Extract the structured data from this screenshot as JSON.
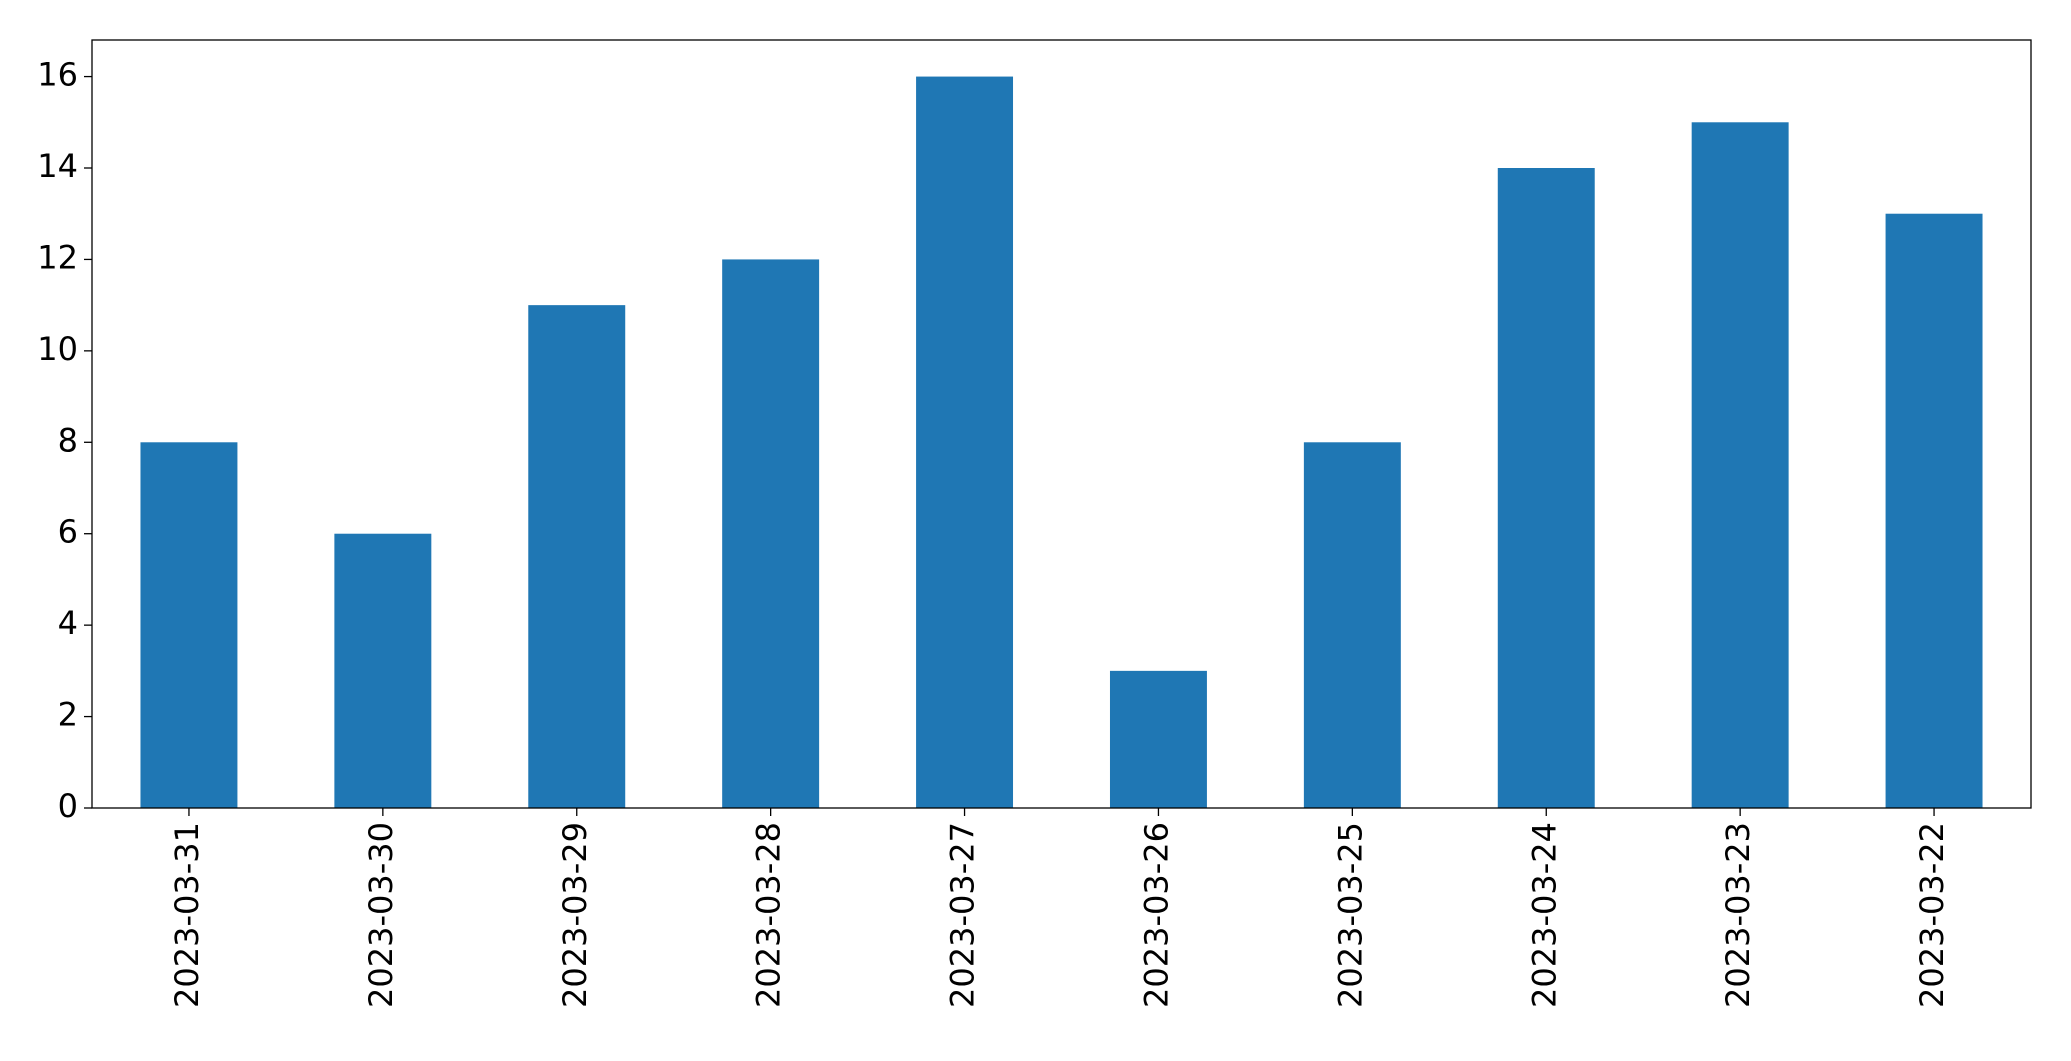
{
  "chart_data": {
    "type": "bar",
    "categories": [
      "2023-03-31",
      "2023-03-30",
      "2023-03-29",
      "2023-03-28",
      "2023-03-27",
      "2023-03-26",
      "2023-03-25",
      "2023-03-24",
      "2023-03-23",
      "2023-03-22"
    ],
    "values": [
      8,
      6,
      11,
      12,
      16,
      3,
      8,
      14,
      15,
      13
    ],
    "color": "#1f77b4",
    "ylim": [
      0,
      16.8
    ],
    "yticks": [
      0,
      2,
      4,
      6,
      8,
      10,
      12,
      14,
      16
    ],
    "grid": false
  }
}
